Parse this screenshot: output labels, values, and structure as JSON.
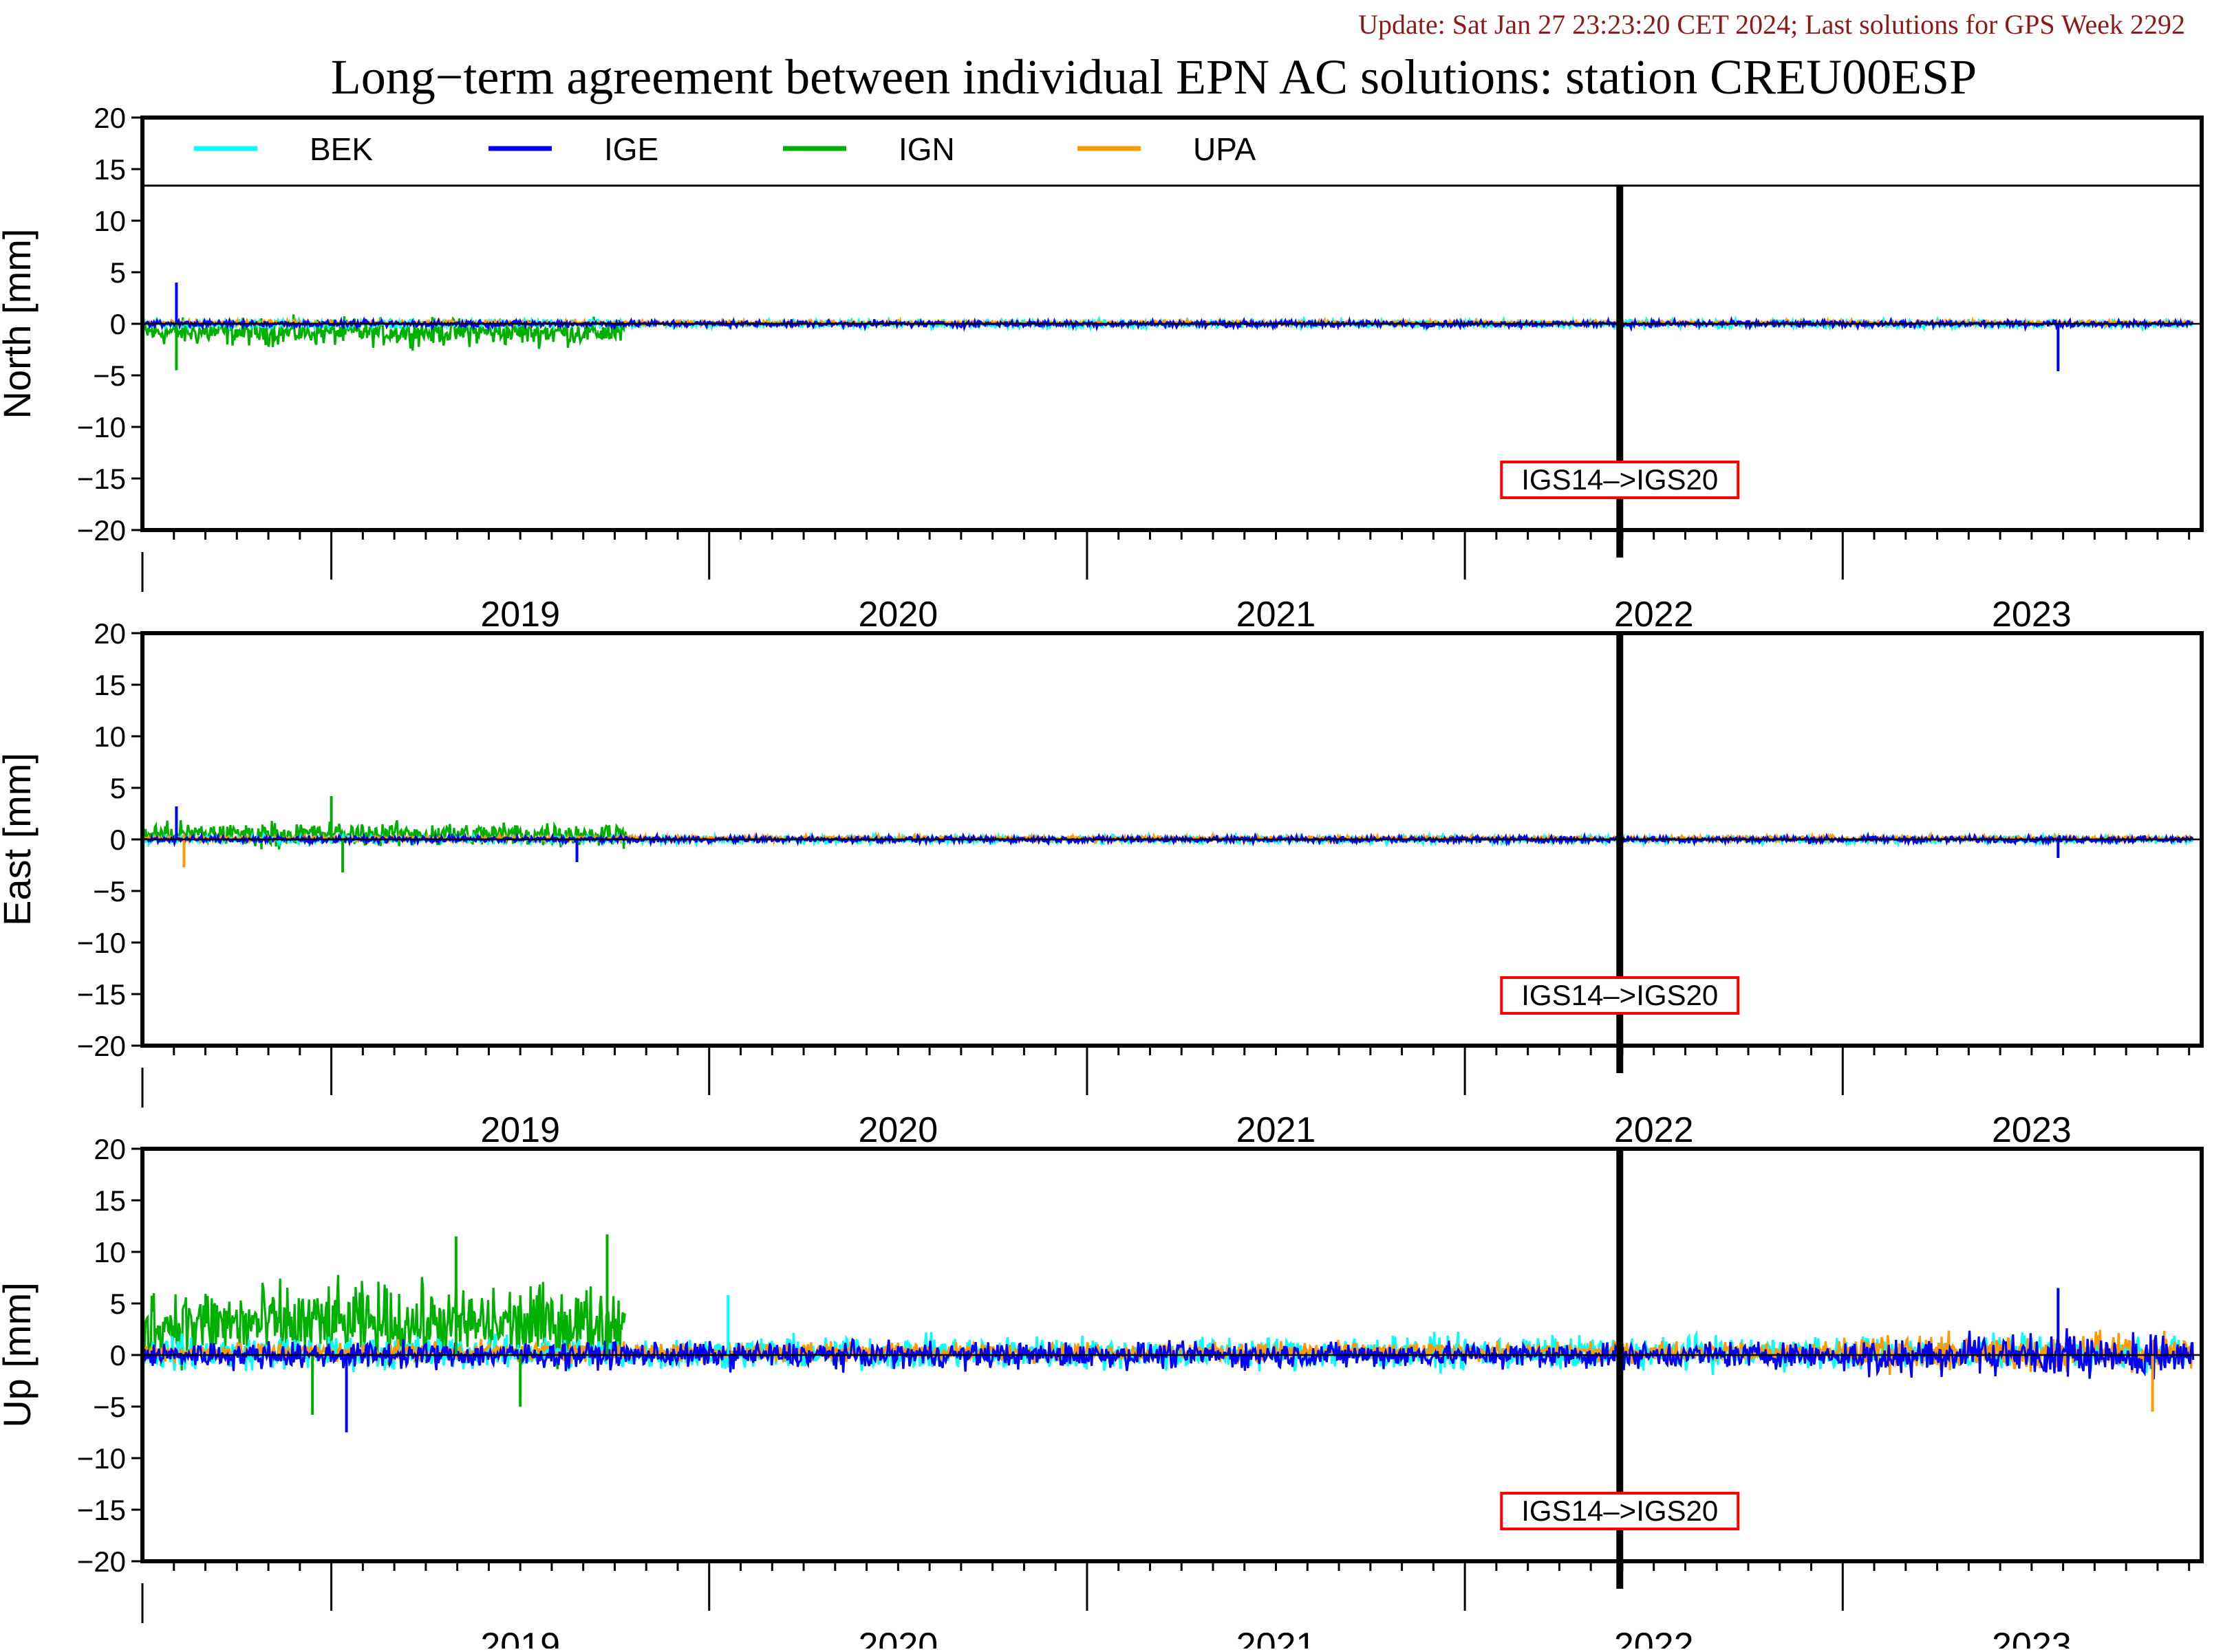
{
  "update_note": "Update: Sat Jan 27 23:23:20 CET 2024; Last solutions for GPS Week 2292",
  "title": "Long−term agreement between individual EPN AC solutions: station CREU00ESP",
  "colors": {
    "BEK": "#00ffff",
    "IGE": "#0000ff",
    "IGN": "#00b000",
    "UPA": "#ff9900",
    "update_note": "#8b1a1a",
    "annotation_box": "#ff0000"
  },
  "chart_data": [
    {
      "type": "line",
      "panel": "north",
      "ylabel": "North [mm]",
      "ylim": [
        -20,
        20
      ],
      "yticks": [
        20,
        15,
        10,
        5,
        0,
        -5,
        -10,
        -15,
        -20
      ],
      "xlim": [
        2018.5,
        2023.95
      ],
      "x_tick_labels": [
        "2019",
        "2020",
        "2021",
        "2022",
        "2023"
      ],
      "legend": [
        "BEK",
        "IGE",
        "IGN",
        "UPA"
      ],
      "legend_position": "top",
      "reference_frame_change": {
        "x": 2022.41,
        "label": "IGS14–>IGS20"
      },
      "series": [
        {
          "name": "BEK",
          "segments": [
            {
              "start": 2018.5,
              "end": 2023.93,
              "mean": 0.0,
              "amp": 0.55
            }
          ]
        },
        {
          "name": "IGE",
          "segments": [
            {
              "start": 2018.5,
              "end": 2023.93,
              "mean": 0.0,
              "amp": 0.45
            }
          ]
        },
        {
          "name": "IGN",
          "segments": [
            {
              "start": 2018.5,
              "end": 2019.78,
              "mean": -0.8,
              "amp": 1.9
            }
          ]
        },
        {
          "name": "UPA",
          "segments": [
            {
              "start": 2018.5,
              "end": 2023.93,
              "mean": 0.1,
              "amp": 0.3
            }
          ]
        }
      ],
      "spikes": [
        {
          "series": "IGE",
          "x": 2018.59,
          "y": 4.0
        },
        {
          "series": "IGN",
          "x": 2018.59,
          "y": -4.5
        },
        {
          "series": "IGE",
          "x": 2023.57,
          "y": -4.6
        }
      ]
    },
    {
      "type": "line",
      "panel": "east",
      "ylabel": "East [mm]",
      "ylim": [
        -20,
        20
      ],
      "yticks": [
        20,
        15,
        10,
        5,
        0,
        -5,
        -10,
        -15,
        -20
      ],
      "xlim": [
        2018.5,
        2023.95
      ],
      "x_tick_labels": [
        "2019",
        "2020",
        "2021",
        "2022",
        "2023"
      ],
      "reference_frame_change": {
        "x": 2022.41,
        "label": "IGS14–>IGS20"
      },
      "series": [
        {
          "name": "BEK",
          "segments": [
            {
              "start": 2018.5,
              "end": 2023.93,
              "mean": 0.0,
              "amp": 0.55
            }
          ]
        },
        {
          "name": "IGE",
          "segments": [
            {
              "start": 2018.5,
              "end": 2023.93,
              "mean": 0.0,
              "amp": 0.45
            }
          ]
        },
        {
          "name": "IGN",
          "segments": [
            {
              "start": 2018.5,
              "end": 2019.78,
              "mean": 0.5,
              "amp": 1.7
            }
          ]
        },
        {
          "name": "UPA",
          "segments": [
            {
              "start": 2018.5,
              "end": 2023.93,
              "mean": 0.1,
              "amp": 0.35
            }
          ]
        }
      ],
      "spikes": [
        {
          "series": "IGN",
          "x": 2019.0,
          "y": 4.2
        },
        {
          "series": "IGN",
          "x": 2019.03,
          "y": -3.2
        },
        {
          "series": "IGE",
          "x": 2018.59,
          "y": 3.2
        },
        {
          "series": "UPA",
          "x": 2018.61,
          "y": -2.7
        },
        {
          "series": "IGE",
          "x": 2019.65,
          "y": -2.2
        },
        {
          "series": "IGE",
          "x": 2023.57,
          "y": -1.8
        }
      ]
    },
    {
      "type": "line",
      "panel": "up",
      "ylabel": "Up [mm]",
      "ylim": [
        -20,
        20
      ],
      "yticks": [
        20,
        15,
        10,
        5,
        0,
        -5,
        -10,
        -15,
        -20
      ],
      "xlim": [
        2018.5,
        2023.95
      ],
      "x_tick_labels": [
        "2019",
        "2020",
        "2021",
        "2022",
        "2023"
      ],
      "reference_frame_change": {
        "x": 2022.41,
        "label": "IGS14–>IGS20"
      },
      "series": [
        {
          "name": "BEK",
          "segments": [
            {
              "start": 2018.5,
              "end": 2023.93,
              "mean": 0.2,
              "amp": 2.3
            }
          ]
        },
        {
          "name": "IGE",
          "segments": [
            {
              "start": 2018.5,
              "end": 2023.93,
              "mean": 0.0,
              "amp": 1.8
            }
          ]
        },
        {
          "name": "IGN",
          "segments": [
            {
              "start": 2018.5,
              "end": 2019.78,
              "mean": 3.0,
              "amp": 5.5
            }
          ]
        },
        {
          "name": "UPA",
          "segments": [
            {
              "start": 2018.5,
              "end": 2023.93,
              "mean": 0.3,
              "amp": 1.3
            }
          ]
        }
      ],
      "spikes": [
        {
          "series": "IGN",
          "x": 2019.33,
          "y": 11.5
        },
        {
          "series": "IGN",
          "x": 2019.73,
          "y": 11.7
        },
        {
          "series": "IGN",
          "x": 2018.95,
          "y": -5.8
        },
        {
          "series": "IGE",
          "x": 2019.04,
          "y": -7.5
        },
        {
          "series": "IGN",
          "x": 2019.5,
          "y": -5.0
        },
        {
          "series": "IGE",
          "x": 2023.57,
          "y": 6.5
        },
        {
          "series": "UPA",
          "x": 2023.82,
          "y": -5.5
        },
        {
          "series": "BEK",
          "x": 2020.05,
          "y": 5.8
        }
      ]
    }
  ]
}
